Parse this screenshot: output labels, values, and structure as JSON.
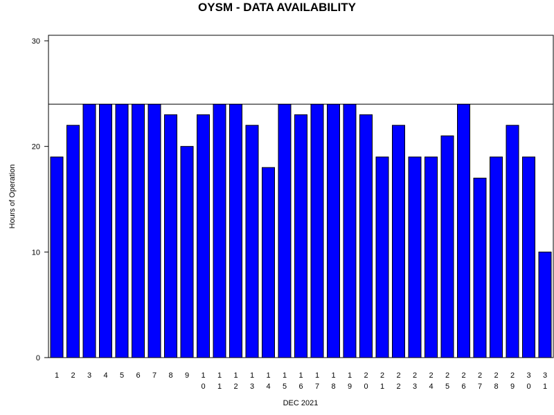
{
  "chart_data": {
    "type": "bar",
    "title": "OYSM - DATA AVAILABILITY",
    "xlabel": "DEC 2021",
    "ylabel": "Hours of Operation",
    "ylim": [
      0,
      30
    ],
    "yticks": [
      0,
      10,
      20,
      30
    ],
    "reference_line": 24,
    "bar_color": "#0000ff",
    "categories": [
      "1",
      "2",
      "3",
      "4",
      "5",
      "6",
      "7",
      "8",
      "9",
      "10",
      "11",
      "12",
      "13",
      "14",
      "15",
      "16",
      "17",
      "18",
      "19",
      "20",
      "21",
      "22",
      "23",
      "24",
      "25",
      "26",
      "27",
      "28",
      "29",
      "30",
      "31"
    ],
    "values": [
      19,
      22,
      24,
      24,
      24,
      24,
      24,
      23,
      20,
      23,
      24,
      24,
      22,
      18,
      24,
      23,
      24,
      24,
      24,
      23,
      19,
      22,
      19,
      19,
      21,
      24,
      17,
      19,
      22,
      19,
      10
    ]
  }
}
